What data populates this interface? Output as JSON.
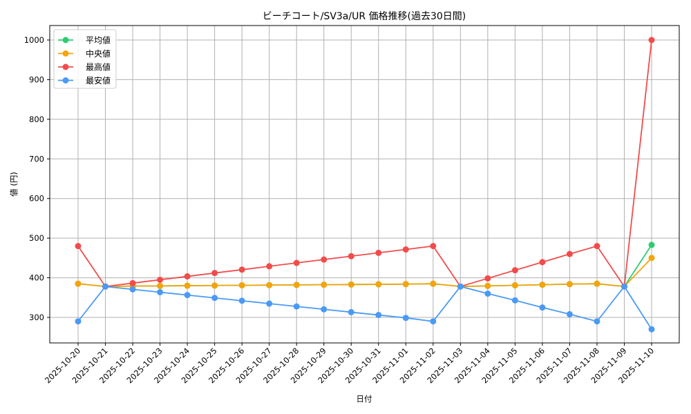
{
  "chart_data": {
    "type": "line",
    "title": "ビーチコート/SV3a/UR 価格推移(過去30日間)",
    "xlabel": "日付",
    "ylabel": "値 (円)",
    "ylim": [
      235,
      1035
    ],
    "yticks": [
      300,
      400,
      500,
      600,
      700,
      800,
      900,
      1000
    ],
    "grid": true,
    "legend_position": "upper left",
    "categories": [
      "2025-10-20",
      "2025-10-21",
      "2025-10-22",
      "2025-10-23",
      "2025-10-24",
      "2025-10-25",
      "2025-10-26",
      "2025-10-27",
      "2025-10-28",
      "2025-10-29",
      "2025-10-30",
      "2025-10-31",
      "2025-11-01",
      "2025-11-02",
      "2025-11-03",
      "2025-11-04",
      "2025-11-05",
      "2025-11-06",
      "2025-11-07",
      "2025-11-08",
      "2025-11-09",
      "2025-11-10"
    ],
    "series": [
      {
        "name": "平均値",
        "color": "#2ecc71",
        "values": [
          385,
          378,
          379,
          379.5,
          380,
          380.5,
          381,
          381.5,
          382,
          382.5,
          383,
          383.5,
          384,
          385,
          378,
          379.5,
          381,
          382.5,
          384,
          385,
          378,
          483
        ]
      },
      {
        "name": "中央値",
        "color": "#f5a40c",
        "values": [
          385,
          378,
          379,
          379.5,
          380,
          380.5,
          381,
          381.5,
          382,
          382.5,
          383,
          383.5,
          384,
          385,
          378,
          379.5,
          381,
          382.5,
          384,
          385,
          378,
          450
        ]
      },
      {
        "name": "最高値",
        "color": "#f24b4b",
        "values": [
          480,
          378,
          386.5,
          395,
          403.5,
          412,
          420.5,
          429,
          437.5,
          446,
          454.5,
          463,
          471.5,
          480,
          378,
          398.5,
          419,
          439.5,
          460,
          480,
          378,
          1000
        ]
      },
      {
        "name": "最安値",
        "color": "#4a9af5",
        "values": [
          290,
          378,
          370.8,
          363.6,
          356.4,
          349.2,
          342,
          334.8,
          327.6,
          320.4,
          313.2,
          306,
          298.8,
          290,
          378,
          360,
          343,
          325,
          308,
          290,
          378,
          270
        ]
      }
    ]
  },
  "colors": {
    "grid": "#b0b0b0",
    "axis": "#000000",
    "legend_border": "#cccccc"
  }
}
